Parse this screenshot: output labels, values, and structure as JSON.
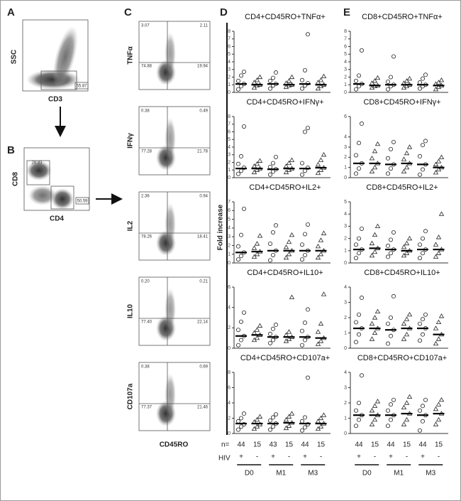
{
  "panel_labels": {
    "A": "A",
    "B": "B",
    "C": "C",
    "D": "D",
    "E": "E"
  },
  "flow_a": {
    "y_label": "SSC",
    "x_label": "CD3",
    "gate": "55.87"
  },
  "flow_b": {
    "y_label": "CD8",
    "x_label": "CD4",
    "gate_cd8": "28.83",
    "gate_cd4": "50.59"
  },
  "flow_c": {
    "x_label": "CD45RO",
    "plots": [
      {
        "label": "TNFα",
        "q": [
          "3.07",
          "2.11",
          "74.88",
          "19.94"
        ]
      },
      {
        "label": "IFNγ",
        "q": [
          "0.38",
          "0.49",
          "77.28",
          "21.78"
        ]
      },
      {
        "label": "IL2",
        "q": [
          "2.36",
          "0.94",
          "78.26",
          "18.41"
        ]
      },
      {
        "label": "IL10",
        "q": [
          "0.20",
          "0.21",
          "77.40",
          "22.14"
        ]
      },
      {
        "label": "CD107a",
        "q": [
          "0.38",
          "0.69",
          "77.37",
          "21.46"
        ]
      }
    ]
  },
  "y_label": "Fold increase",
  "dot_panels": [
    {
      "title": "CD4+CD45RO+TNFα+",
      "ylim": [
        0,
        8
      ],
      "yticks": [
        0,
        1,
        2,
        3,
        4,
        5,
        6,
        7,
        8
      ],
      "medians": [
        1.1,
        1.0,
        1.1,
        1.0,
        1.1,
        1.0
      ],
      "points": [
        [
          0.4,
          0.8,
          1.1,
          1.5,
          2.2,
          2.7
        ],
        [
          0.6,
          0.9,
          1.0,
          1.3,
          1.6,
          2.0
        ],
        [
          0.5,
          0.9,
          1.1,
          1.5,
          1.9,
          2.6
        ],
        [
          0.7,
          0.9,
          1.0,
          1.2,
          1.5,
          2.0
        ],
        [
          0.5,
          0.9,
          1.2,
          1.6,
          2.9,
          7.6
        ],
        [
          0.5,
          0.8,
          1.0,
          1.3,
          1.6,
          2.1
        ]
      ]
    },
    {
      "title": "CD4+CD45RO+IFNγ+",
      "ylim": [
        0,
        8
      ],
      "yticks": [
        0,
        1,
        2,
        3,
        4,
        5,
        6,
        7,
        8
      ],
      "medians": [
        1.2,
        1.2,
        1.1,
        1.2,
        1.2,
        1.3
      ],
      "points": [
        [
          0.5,
          0.9,
          1.3,
          1.8,
          2.8,
          6.7
        ],
        [
          0.7,
          1.0,
          1.2,
          1.5,
          1.8,
          2.2
        ],
        [
          0.4,
          0.8,
          1.1,
          1.4,
          1.9,
          2.7
        ],
        [
          0.7,
          1.0,
          1.2,
          1.5,
          1.9,
          2.3
        ],
        [
          0.4,
          0.9,
          1.3,
          1.9,
          6.0,
          6.5
        ],
        [
          0.6,
          1.0,
          1.3,
          1.7,
          2.3,
          3.0
        ]
      ]
    },
    {
      "title": "CD4+CD45RO+IL2+",
      "ylim": [
        0,
        7
      ],
      "yticks": [
        0,
        1,
        2,
        3,
        4,
        5,
        6,
        7
      ],
      "medians": [
        1.2,
        1.3,
        1.4,
        1.4,
        1.4,
        1.4
      ],
      "points": [
        [
          0.4,
          0.8,
          1.2,
          1.9,
          3.2,
          6.2
        ],
        [
          0.7,
          1.0,
          1.3,
          1.7,
          2.2,
          3.1
        ],
        [
          0.3,
          0.9,
          1.4,
          2.2,
          3.5,
          4.3
        ],
        [
          0.6,
          1.0,
          1.4,
          1.8,
          2.4,
          3.2
        ],
        [
          0.4,
          0.9,
          1.4,
          2.1,
          3.3,
          4.4
        ],
        [
          0.6,
          1.0,
          1.4,
          1.9,
          2.6,
          3.4
        ]
      ]
    },
    {
      "title": "CD4+CD45RO+IL10+",
      "ylim": [
        0,
        6
      ],
      "yticks": [
        0,
        2,
        4,
        6
      ],
      "medians": [
        1.2,
        1.3,
        1.1,
        1.1,
        1.1,
        1.0
      ],
      "points": [
        [
          0.3,
          0.8,
          1.2,
          1.8,
          2.6,
          3.5
        ],
        [
          0.8,
          1.0,
          1.3,
          1.5,
          1.8,
          2.2
        ],
        [
          0.5,
          0.8,
          1.1,
          1.4,
          1.9,
          2.3
        ],
        [
          0.7,
          0.9,
          1.1,
          1.3,
          1.6,
          5.0
        ],
        [
          0.3,
          0.8,
          1.1,
          1.7,
          2.5,
          3.8
        ],
        [
          0.4,
          0.7,
          1.0,
          1.6,
          2.4,
          5.3
        ]
      ]
    },
    {
      "title": "CD4+CD45RO+CD107a+",
      "ylim": [
        0,
        8
      ],
      "yticks": [
        0,
        2,
        4,
        6,
        8
      ],
      "medians": [
        1.3,
        1.3,
        1.3,
        1.4,
        1.3,
        1.3
      ],
      "points": [
        [
          0.5,
          0.9,
          1.2,
          1.6,
          2.0,
          2.6
        ],
        [
          0.6,
          0.9,
          1.2,
          1.5,
          1.8,
          2.2
        ],
        [
          0.5,
          0.9,
          1.3,
          1.7,
          2.1,
          2.5
        ],
        [
          0.7,
          1.0,
          1.4,
          1.8,
          2.2,
          2.6
        ],
        [
          0.4,
          0.8,
          1.2,
          1.6,
          2.1,
          7.3
        ],
        [
          0.6,
          0.9,
          1.3,
          1.6,
          2.0,
          2.4
        ]
      ]
    },
    {
      "title": "CD8+CD45RO+TNFα+",
      "ylim": [
        0,
        8
      ],
      "yticks": [
        0,
        1,
        2,
        3,
        4,
        5,
        6,
        7,
        8
      ],
      "medians": [
        1.1,
        0.9,
        1.0,
        1.0,
        1.0,
        0.9
      ],
      "points": [
        [
          0.4,
          0.8,
          1.1,
          1.5,
          2.2,
          5.5
        ],
        [
          0.6,
          0.8,
          0.9,
          1.2,
          1.5,
          1.9
        ],
        [
          0.4,
          0.8,
          1.0,
          1.4,
          2.0,
          4.7
        ],
        [
          0.6,
          0.8,
          1.0,
          1.2,
          1.5,
          1.8
        ],
        [
          0.5,
          0.8,
          1.0,
          1.3,
          1.8,
          2.3
        ],
        [
          0.4,
          0.7,
          0.9,
          1.1,
          1.3,
          1.6
        ]
      ]
    },
    {
      "title": "CD8+CD45RO+IFNγ+",
      "ylim": [
        0,
        6
      ],
      "yticks": [
        0,
        1,
        2,
        3,
        4,
        6
      ],
      "medians": [
        1.4,
        1.4,
        1.3,
        1.4,
        1.3,
        1.0
      ],
      "points": [
        [
          0.4,
          0.9,
          1.4,
          2.2,
          3.4,
          5.3
        ],
        [
          0.6,
          1.0,
          1.4,
          1.9,
          2.6,
          3.3
        ],
        [
          0.4,
          0.9,
          1.3,
          1.9,
          2.8,
          3.5
        ],
        [
          0.6,
          1.0,
          1.4,
          1.8,
          2.4,
          3.0
        ],
        [
          0.3,
          0.8,
          1.3,
          2.1,
          3.2,
          3.6
        ],
        [
          0.5,
          0.8,
          1.0,
          1.3,
          1.6,
          2.0
        ]
      ]
    },
    {
      "title": "CD8+CD45RO+IL2+",
      "ylim": [
        0,
        5
      ],
      "yticks": [
        0,
        1,
        2,
        3,
        4,
        5
      ],
      "medians": [
        1.1,
        1.2,
        1.1,
        1.0,
        1.1,
        1.1
      ],
      "points": [
        [
          0.4,
          0.8,
          1.1,
          1.5,
          2.0,
          2.8
        ],
        [
          0.6,
          0.9,
          1.2,
          1.6,
          2.3,
          3.0
        ],
        [
          0.5,
          0.8,
          1.1,
          1.4,
          1.9,
          2.5
        ],
        [
          0.6,
          0.8,
          1.0,
          1.3,
          1.6,
          2.0
        ],
        [
          0.4,
          0.8,
          1.1,
          1.5,
          2.0,
          2.6
        ],
        [
          0.5,
          0.8,
          1.1,
          1.5,
          2.1,
          4.0
        ]
      ]
    },
    {
      "title": "CD8+CD45RO+IL10+",
      "ylim": [
        0,
        4
      ],
      "yticks": [
        0,
        1,
        2,
        3,
        4
      ],
      "medians": [
        1.3,
        1.3,
        1.2,
        1.3,
        1.3,
        0.9
      ],
      "points": [
        [
          0.4,
          0.9,
          1.3,
          1.7,
          2.2,
          3.3
        ],
        [
          0.6,
          1.0,
          1.3,
          1.6,
          2.0,
          2.4
        ],
        [
          0.3,
          0.8,
          1.2,
          1.6,
          2.0,
          3.4
        ],
        [
          0.6,
          0.9,
          1.3,
          1.6,
          1.9,
          2.2
        ],
        [
          0.5,
          0.9,
          1.3,
          1.6,
          1.9,
          2.2
        ],
        [
          0.3,
          0.6,
          0.9,
          1.3,
          1.7,
          2.1
        ]
      ]
    },
    {
      "title": "CD8+CD45RO+CD107a+",
      "ylim": [
        0,
        4
      ],
      "yticks": [
        0,
        1,
        2,
        3,
        4
      ],
      "medians": [
        1.2,
        1.2,
        1.2,
        1.3,
        1.2,
        1.3
      ],
      "points": [
        [
          0.5,
          0.9,
          1.2,
          1.5,
          2.0,
          3.8
        ],
        [
          0.6,
          0.9,
          1.2,
          1.5,
          1.8,
          2.1
        ],
        [
          0.5,
          0.9,
          1.2,
          1.5,
          1.9,
          2.2
        ],
        [
          0.6,
          0.9,
          1.3,
          1.7,
          2.0,
          2.4
        ],
        [
          0.2,
          0.8,
          1.2,
          1.5,
          1.8,
          2.2
        ],
        [
          0.6,
          0.9,
          1.3,
          1.6,
          1.9,
          2.2
        ]
      ]
    }
  ],
  "n_label": "n=",
  "n_values_d": [
    44,
    15,
    43,
    15,
    44,
    15
  ],
  "n_values_e": [
    44,
    15,
    44,
    15,
    44,
    15
  ],
  "hiv_label": "HIV",
  "hiv_signs": [
    "+",
    "-",
    "+",
    "-",
    "+",
    "-"
  ],
  "timepoints": [
    "D0",
    "M1",
    "M3"
  ]
}
